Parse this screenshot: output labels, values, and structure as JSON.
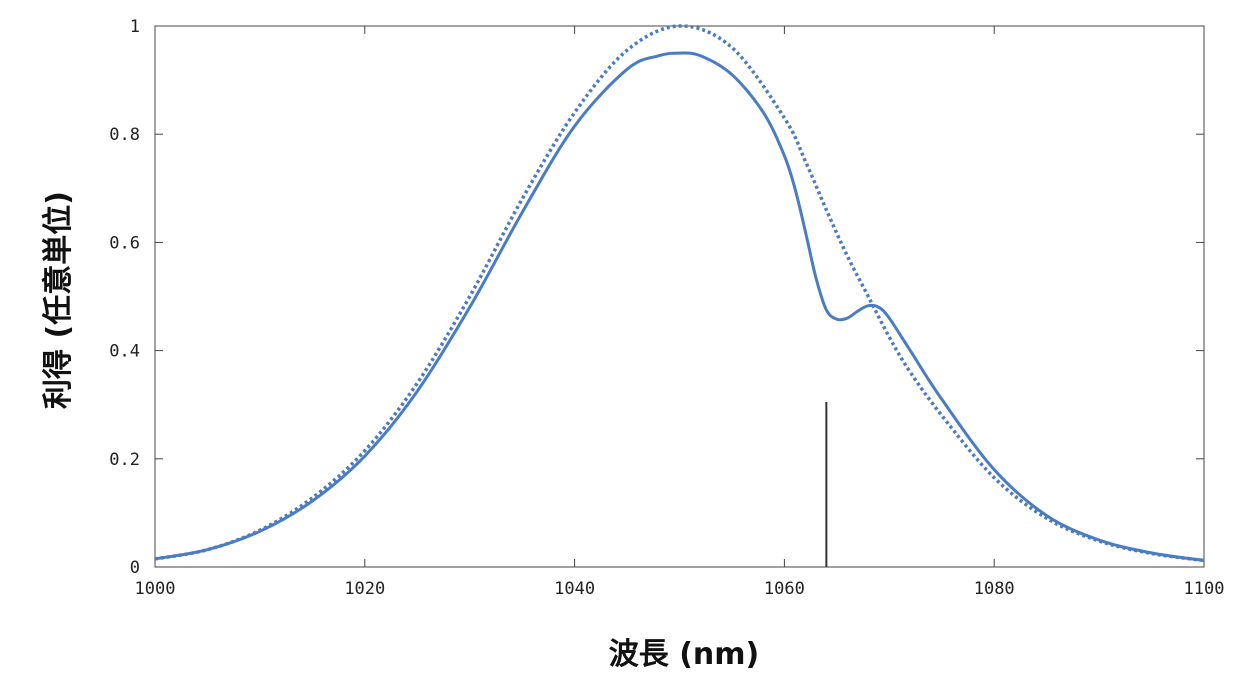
{
  "chart_data": {
    "type": "line",
    "xlabel": "波長 (nm)",
    "ylabel": "利得 (任意単位)",
    "xlim": [
      1000,
      1100
    ],
    "ylim": [
      0,
      1
    ],
    "x_ticks": [
      "1000",
      "1020",
      "1040",
      "1060",
      "1080",
      "1100"
    ],
    "y_ticks": [
      "0",
      "0.2",
      "0.4",
      "0.6",
      "0.8",
      "1"
    ],
    "grid": false,
    "legend": "none",
    "series": [
      {
        "style": "dotted",
        "color": "#4a7cc4",
        "x": [
          1000,
          1005,
          1010,
          1015,
          1020,
          1025,
          1030,
          1035,
          1040,
          1045,
          1050,
          1055,
          1060,
          1062,
          1064,
          1066,
          1068,
          1070,
          1072,
          1075,
          1080,
          1085,
          1090,
          1095,
          1100
        ],
        "y": [
          0.015,
          0.032,
          0.068,
          0.128,
          0.215,
          0.34,
          0.5,
          0.68,
          0.84,
          0.955,
          1.0,
          0.96,
          0.83,
          0.75,
          0.66,
          0.575,
          0.5,
          0.425,
          0.36,
          0.28,
          0.165,
          0.09,
          0.048,
          0.025,
          0.012
        ]
      },
      {
        "style": "solid",
        "color": "#4a7cc4",
        "x": [
          1000,
          1005,
          1010,
          1015,
          1020,
          1025,
          1030,
          1035,
          1040,
          1045,
          1048,
          1050,
          1052,
          1055,
          1058,
          1060,
          1061,
          1062,
          1063,
          1064,
          1065,
          1066,
          1067,
          1068,
          1069,
          1070,
          1072,
          1075,
          1080,
          1085,
          1090,
          1095,
          1100
        ],
        "y": [
          0.015,
          0.032,
          0.066,
          0.122,
          0.205,
          0.325,
          0.48,
          0.655,
          0.815,
          0.92,
          0.945,
          0.95,
          0.945,
          0.91,
          0.84,
          0.76,
          0.7,
          0.62,
          0.535,
          0.475,
          0.458,
          0.46,
          0.473,
          0.483,
          0.48,
          0.46,
          0.4,
          0.31,
          0.18,
          0.095,
          0.05,
          0.026,
          0.012
        ]
      }
    ],
    "marker_line": {
      "x": 1064,
      "y_top": 0.305,
      "color": "#333333"
    }
  }
}
